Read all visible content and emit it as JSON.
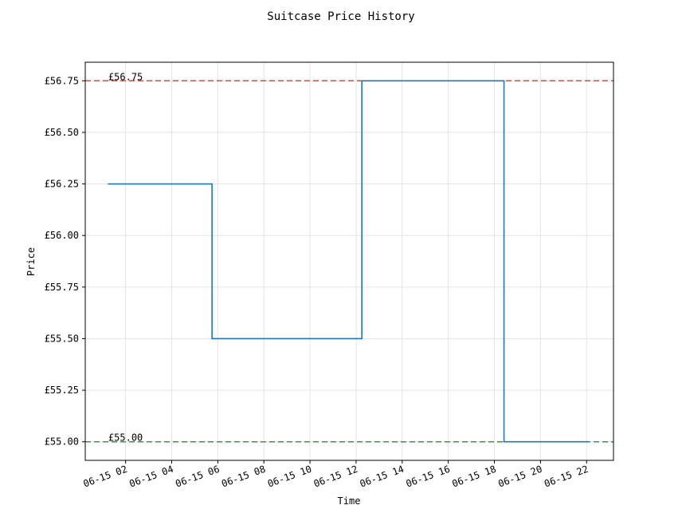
{
  "chart_data": {
    "type": "line",
    "step": "post",
    "title": "Suitcase Price History",
    "xlabel": "Time",
    "ylabel": "Price",
    "grid": true,
    "x_axis_type": "datetime",
    "xlim": [
      "2024-06-15T00:15",
      "2024-06-15T23:10"
    ],
    "ylim": [
      54.91,
      56.84
    ],
    "x_ticks": [
      {
        "value": "2024-06-15T02:00",
        "label": "06-15 02"
      },
      {
        "value": "2024-06-15T04:00",
        "label": "06-15 04"
      },
      {
        "value": "2024-06-15T06:00",
        "label": "06-15 06"
      },
      {
        "value": "2024-06-15T08:00",
        "label": "06-15 08"
      },
      {
        "value": "2024-06-15T10:00",
        "label": "06-15 10"
      },
      {
        "value": "2024-06-15T12:00",
        "label": "06-15 12"
      },
      {
        "value": "2024-06-15T14:00",
        "label": "06-15 14"
      },
      {
        "value": "2024-06-15T16:00",
        "label": "06-15 16"
      },
      {
        "value": "2024-06-15T18:00",
        "label": "06-15 18"
      },
      {
        "value": "2024-06-15T20:00",
        "label": "06-15 20"
      },
      {
        "value": "2024-06-15T22:00",
        "label": "06-15 22"
      }
    ],
    "y_ticks": [
      {
        "value": 55.0,
        "label": "£55.00"
      },
      {
        "value": 55.25,
        "label": "£55.25"
      },
      {
        "value": 55.5,
        "label": "£55.50"
      },
      {
        "value": 55.75,
        "label": "£55.75"
      },
      {
        "value": 56.0,
        "label": "£56.00"
      },
      {
        "value": 56.25,
        "label": "£56.25"
      },
      {
        "value": 56.5,
        "label": "£56.50"
      },
      {
        "value": 56.75,
        "label": "£56.75"
      }
    ],
    "series": [
      {
        "color": "#1f77b4",
        "points": [
          {
            "x": "2024-06-15T01:15",
            "y": 56.25
          },
          {
            "x": "2024-06-15T05:45",
            "y": 55.5
          },
          {
            "x": "2024-06-15T12:15",
            "y": 56.75
          },
          {
            "x": "2024-06-15T18:25",
            "y": 55.0
          },
          {
            "x": "2024-06-15T22:05",
            "y": 55.0
          }
        ]
      }
    ],
    "reference_lines": [
      {
        "y": 56.75,
        "label": "£56.75",
        "color": "#e8423a",
        "style": "dashed"
      },
      {
        "y": 55.0,
        "label": "£55.00",
        "color": "#3c9a3c",
        "style": "dashed"
      }
    ]
  }
}
